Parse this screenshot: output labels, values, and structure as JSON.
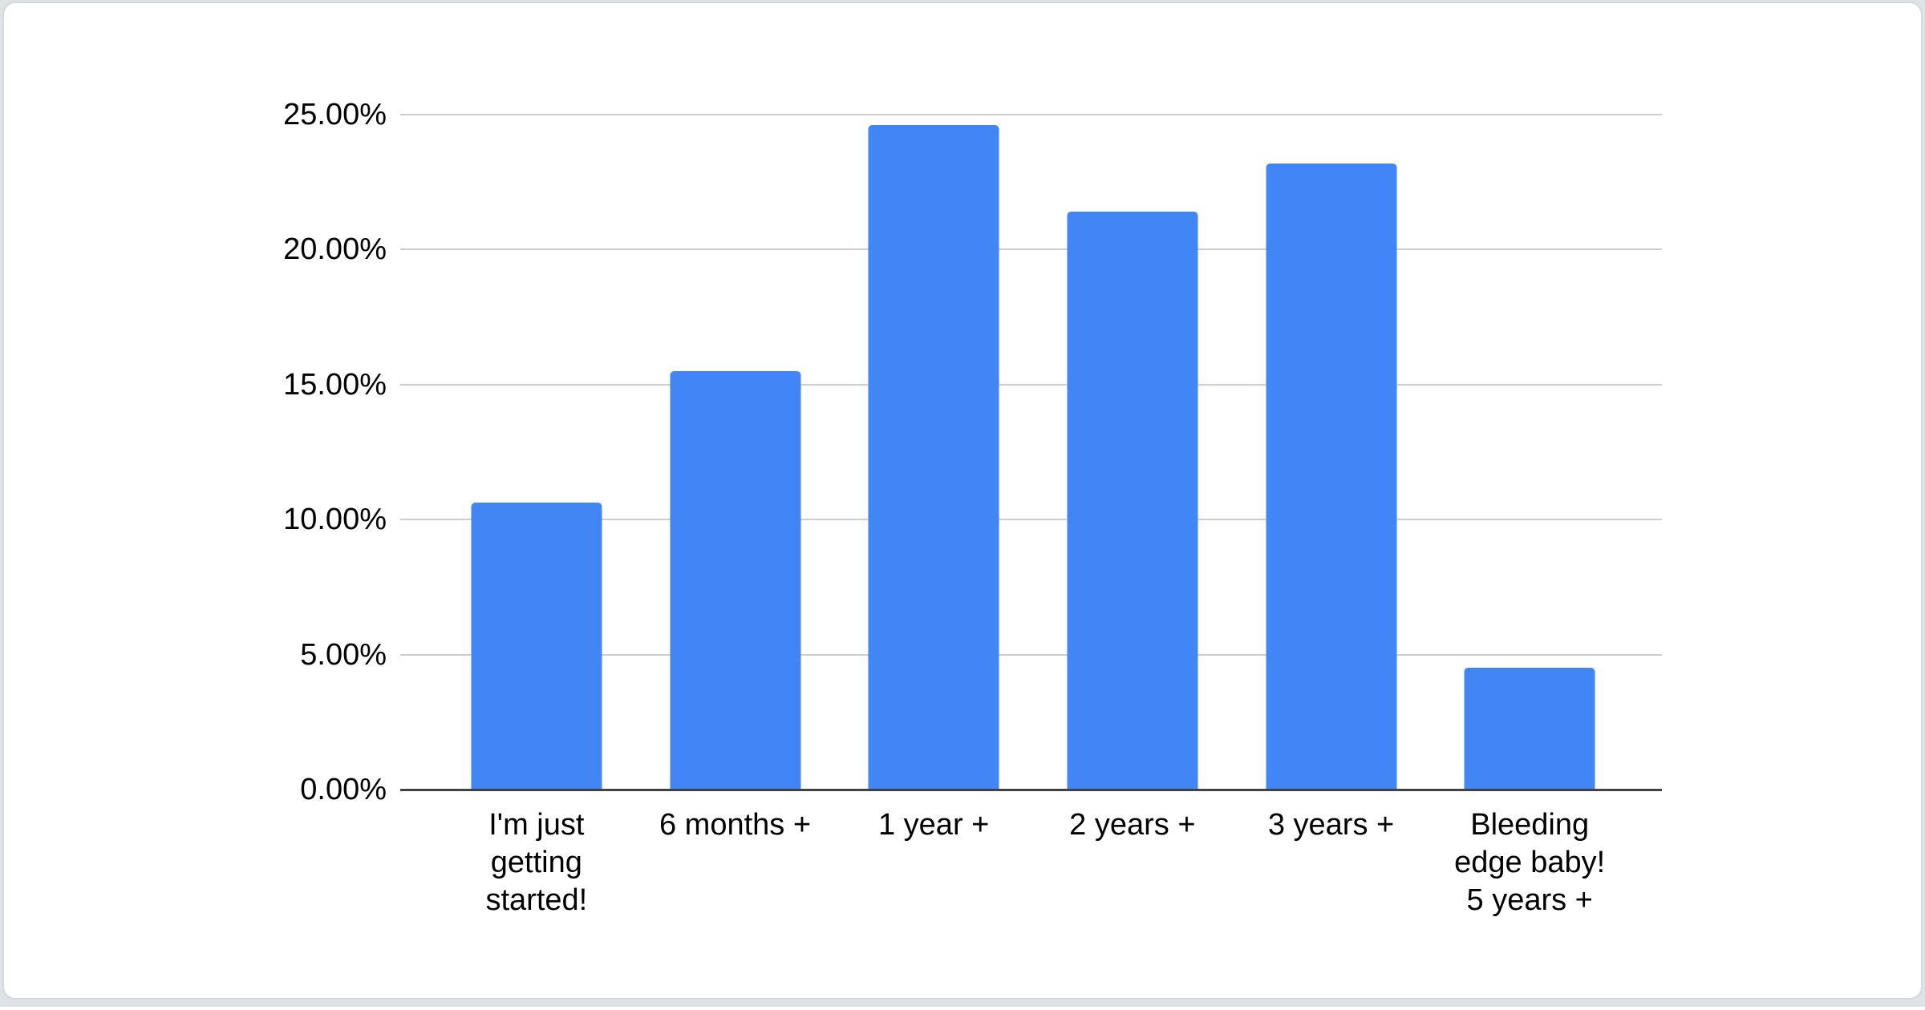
{
  "page": {
    "background_color": "#dfe2e6",
    "card_background": "#ffffff",
    "card_border_color": "#d5d8dc"
  },
  "chart_data": {
    "type": "bar",
    "title": "",
    "xlabel": "",
    "ylabel": "",
    "legend": "none",
    "grid": "horizontal",
    "categories": [
      "I'm just getting started!",
      "6 months +",
      "1 year +",
      "2 years +",
      "3 years +",
      "Bleeding edge baby! 5 years +"
    ],
    "category_display": [
      "I'm just\ngetting\nstarted!",
      "6 months +",
      "1 year +",
      "2 years +",
      "3 years +",
      "Bleeding\nedge baby!\n5 years +"
    ],
    "values": [
      10.6,
      15.5,
      24.6,
      21.4,
      23.2,
      4.5
    ],
    "value_unit": "%",
    "ylim": [
      0,
      25
    ],
    "y_tick_values": [
      0,
      5,
      10,
      15,
      20,
      25
    ],
    "y_tick_labels": [
      "0.00%",
      "5.00%",
      "10.00%",
      "15.00%",
      "20.00%",
      "25.00%"
    ],
    "bar_color": "#4285f4",
    "gridline_color": "#cccccc",
    "axis_line_color": "#424242",
    "label_color": "#000000"
  }
}
